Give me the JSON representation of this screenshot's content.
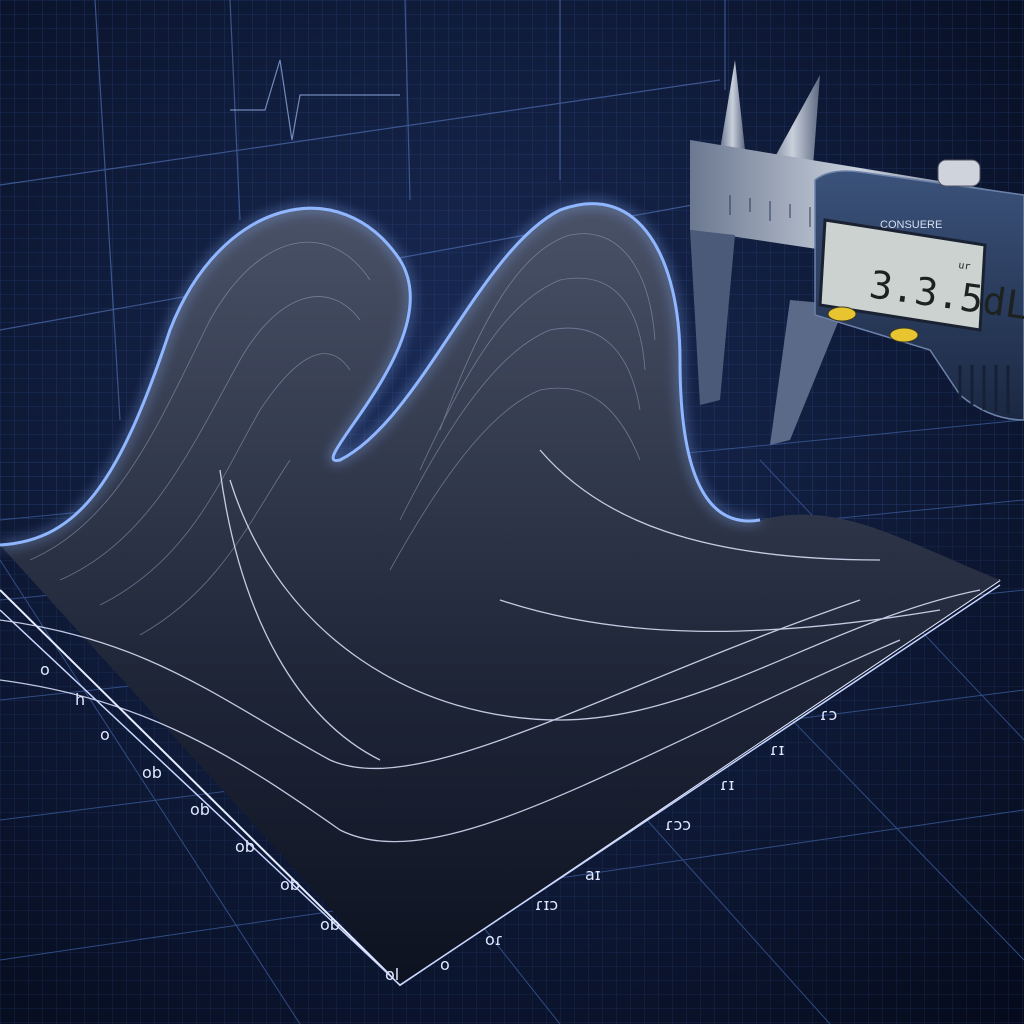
{
  "caliper": {
    "brand": "CONSUERE",
    "reading": "3.3.5dL",
    "unit": "ur",
    "colors": {
      "body": "#2b3e5e",
      "lcd_bg": "#cbd2cf",
      "lcd_text": "#1d2220",
      "button": "#e8c431"
    }
  },
  "axes": {
    "left_scale_marks": [
      "o",
      "h",
      "o",
      "ob",
      "ob",
      "ob",
      "ob",
      "ob",
      "o",
      "ol"
    ],
    "front_scale_marks": [
      "o",
      "oɾ",
      "ɾɪɔ",
      "aɪ",
      "ɾɔɔ",
      "ɾɪ",
      "ɾɪ",
      "ɾɔ"
    ],
    "colors": {
      "grid": "#3a5a9a",
      "surface_line": "#c8d4f0",
      "glow": "#6aa0ff"
    }
  },
  "visual": {
    "description_icon": "wave-surface-icon",
    "background": "#0b1530"
  }
}
